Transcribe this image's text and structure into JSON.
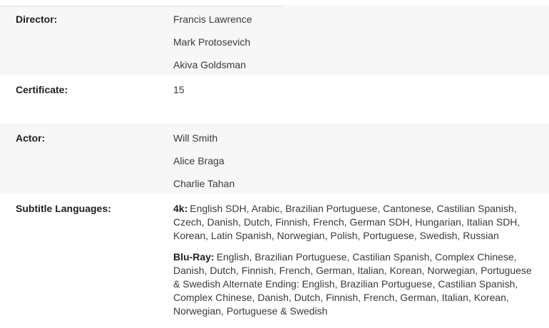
{
  "colors": {
    "shaded_row_bg": "#f7f7f7",
    "label_text": "#1f1f1f",
    "value_text": "#3a3a3a",
    "top_rule": "#e4e4e4",
    "page_bg": "#ffffff"
  },
  "details": {
    "rows": [
      {
        "label": "Director:",
        "values": [
          "Francis Lawrence",
          "Mark Protosevich",
          "Akiva Goldsman"
        ]
      },
      {
        "label": "Certificate:",
        "values": [
          "15"
        ]
      },
      {
        "label": "Actor:",
        "values": [
          "Will Smith",
          "Alice Braga",
          "Charlie Tahan"
        ]
      },
      {
        "label": "Subtitle Languages:",
        "paragraphs": [
          {
            "prefix": "4k:",
            "text": "English SDH, Arabic, Brazilian Portuguese, Cantonese, Castilian Spanish, Czech, Danish, Dutch, Finnish, French, German SDH, Hungarian, Italian SDH, Korean, Latin Spanish, Norwegian, Polish, Portuguese, Swedish, Russian"
          },
          {
            "prefix": "Blu-Ray:",
            "text": "English, Brazilian Portuguese, Castilian Spanish, Complex Chinese, Danish, Dutch, Finnish, French, German, Italian, Korean, Norwegian, Portuguese & Swedish Alternate Ending: English, Brazilian Portuguese, Castilian Spanish, Complex Chinese, Danish, Dutch, Finnish, French, German, Italian, Korean, Norwegian, Portuguese & Swedish"
          }
        ]
      }
    ]
  }
}
